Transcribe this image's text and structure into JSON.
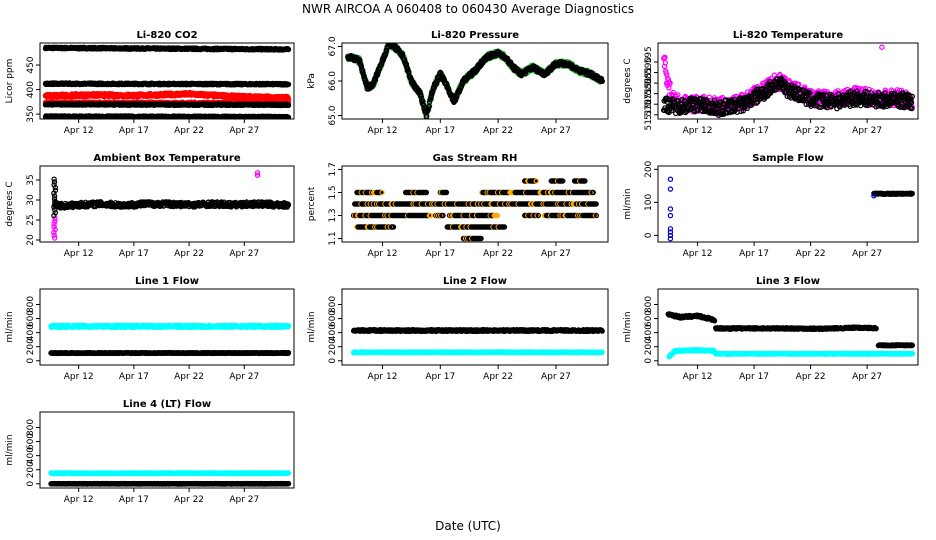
{
  "figure": {
    "title": "NWR   AIRCOA A   060408 to 060430   Average Diagnostics",
    "xlabel": "Date (UTC)"
  },
  "chart_data": [
    {
      "type": "scatter",
      "title": "Li-820 CO2",
      "ylabel": "Licor ppm",
      "ylim": [
        340,
        495
      ],
      "yticks": [
        {
          "v": 350,
          "label": "350"
        },
        {
          "v": 400,
          "label": "400"
        },
        {
          "v": 450,
          "label": "450"
        }
      ],
      "xlim": [
        8.5,
        31.5
      ],
      "xticks": [
        {
          "v": 12,
          "label": "Apr 12"
        },
        {
          "v": 17,
          "label": "Apr 17"
        },
        {
          "v": 22,
          "label": "Apr 22"
        },
        {
          "v": 27,
          "label": "Apr 27"
        }
      ],
      "series": [
        {
          "name": "ref_high",
          "color": "#000000",
          "x": [
            9,
            31
          ],
          "y": [
            485,
            482
          ],
          "noise": 1.5
        },
        {
          "name": "ref_mid",
          "color": "#000000",
          "x": [
            9,
            31
          ],
          "y": [
            412,
            411
          ],
          "noise": 1.5
        },
        {
          "name": "sample",
          "color": "#ff0000",
          "x": [
            9,
            13,
            17,
            22,
            26,
            31
          ],
          "y": [
            387,
            389,
            388,
            391,
            386,
            383
          ],
          "noise": 3
        },
        {
          "name": "sample_low",
          "color": "#ff0000",
          "x": [
            9,
            31
          ],
          "y": [
            373,
            372
          ],
          "noise": 2
        },
        {
          "name": "ref_low",
          "color": "#000000",
          "x": [
            9,
            31
          ],
          "y": [
            370,
            369
          ],
          "noise": 1.5
        },
        {
          "name": "ref_base",
          "color": "#000000",
          "x": [
            9,
            31
          ],
          "y": [
            345,
            344
          ],
          "noise": 1.5
        }
      ]
    },
    {
      "type": "line",
      "title": "Li-820 Pressure",
      "ylabel": "kPa",
      "ylim": [
        64.9,
        67.1
      ],
      "yticks": [
        {
          "v": 65.0,
          "label": "65.0"
        },
        {
          "v": 66.0,
          "label": "66.0"
        },
        {
          "v": 67.0,
          "label": "67.0"
        }
      ],
      "xlim": [
        8.5,
        31.5
      ],
      "xticks": [
        {
          "v": 12,
          "label": "Apr 12"
        },
        {
          "v": 17,
          "label": "Apr 17"
        },
        {
          "v": 22,
          "label": "Apr 22"
        },
        {
          "v": 27,
          "label": "Apr 27"
        }
      ],
      "series": [
        {
          "name": "pressure_green",
          "color": "#22bb22",
          "x": [
            9,
            10,
            10.7,
            11.2,
            12,
            12.6,
            13.3,
            13.8,
            14.5,
            15.3,
            15.8,
            16.4,
            17,
            17.5,
            18.2,
            19,
            20,
            21,
            22,
            22.6,
            23.3,
            24,
            25,
            26,
            27,
            28,
            29,
            30,
            31
          ],
          "y": [
            66.7,
            66.6,
            65.8,
            65.9,
            66.6,
            67.1,
            66.9,
            66.7,
            66.0,
            65.6,
            65.0,
            65.8,
            66.2,
            65.9,
            65.4,
            66.0,
            66.3,
            66.7,
            66.8,
            66.7,
            66.4,
            66.2,
            66.4,
            66.2,
            66.5,
            66.5,
            66.3,
            66.2,
            66.0
          ],
          "noise": 0.08
        },
        {
          "name": "pressure",
          "color": "#000000",
          "x": [
            9,
            10,
            10.7,
            11.2,
            12,
            12.6,
            13.3,
            13.8,
            14.5,
            15.3,
            15.8,
            16.4,
            17,
            17.5,
            18.2,
            19,
            20,
            21,
            22,
            22.6,
            23.3,
            24,
            25,
            26,
            27,
            28,
            29,
            30,
            31
          ],
          "y": [
            66.7,
            66.6,
            65.8,
            65.9,
            66.6,
            67.1,
            66.9,
            66.7,
            66.0,
            65.6,
            65.0,
            65.8,
            66.2,
            65.9,
            65.4,
            66.0,
            66.3,
            66.7,
            66.8,
            66.7,
            66.4,
            66.2,
            66.4,
            66.2,
            66.5,
            66.5,
            66.3,
            66.2,
            66.0
          ],
          "noise": 0.06
        }
      ]
    },
    {
      "type": "scatter",
      "title": "Li-820 Temperature",
      "ylabel": "degrees C",
      "ylim": [
        51.568,
        51.604
      ],
      "yticks": [
        {
          "v": 51.57,
          "label": "51.570"
        },
        {
          "v": 51.575,
          "label": "51.575"
        },
        {
          "v": 51.58,
          "label": "51.580"
        },
        {
          "v": 51.585,
          "label": "51.585"
        },
        {
          "v": 51.59,
          "label": "51.590"
        },
        {
          "v": 51.595,
          "label": "51.595"
        }
      ],
      "xlim": [
        8.5,
        31.5
      ],
      "xticks": [
        {
          "v": 12,
          "label": "Apr 12"
        },
        {
          "v": 17,
          "label": "Apr 17"
        },
        {
          "v": 22,
          "label": "Apr 22"
        },
        {
          "v": 27,
          "label": "Apr 27"
        }
      ],
      "series": [
        {
          "name": "temp_magenta",
          "color": "#ff00ff",
          "x": [
            9,
            9.3,
            10,
            12,
            14,
            16,
            18,
            19,
            20,
            22,
            24,
            26,
            28,
            30,
            31
          ],
          "y": [
            51.598,
            51.585,
            51.576,
            51.575,
            51.574,
            51.576,
            51.582,
            51.586,
            51.583,
            51.578,
            51.577,
            51.579,
            51.578,
            51.578,
            51.577
          ],
          "noise": 0.004
        },
        {
          "name": "temp",
          "color": "#000000",
          "x": [
            9,
            10,
            12,
            14,
            16,
            18,
            19,
            20,
            22,
            24,
            26,
            28,
            30,
            31
          ],
          "y": [
            51.575,
            51.574,
            51.575,
            51.573,
            51.575,
            51.581,
            51.585,
            51.582,
            51.577,
            51.576,
            51.578,
            51.577,
            51.577,
            51.576
          ],
          "noise": 0.0035
        }
      ]
    },
    {
      "type": "scatter",
      "title": "Ambient Box Temperature",
      "ylabel": "degrees C",
      "ylim": [
        19.5,
        38.5
      ],
      "yticks": [
        {
          "v": 20,
          "label": "20"
        },
        {
          "v": 25,
          "label": "25"
        },
        {
          "v": 30,
          "label": "30"
        },
        {
          "v": 35,
          "label": "35"
        }
      ],
      "xlim": [
        8.5,
        31.5
      ],
      "xticks": [
        {
          "v": 12,
          "label": "Apr 12"
        },
        {
          "v": 17,
          "label": "Apr 17"
        },
        {
          "v": 22,
          "label": "Apr 22"
        },
        {
          "v": 27,
          "label": "Apr 27"
        }
      ],
      "series": [
        {
          "name": "box_temp",
          "color": "#000000",
          "x": [
            9.8,
            10.5,
            12,
            14,
            16,
            18,
            20,
            22,
            24,
            26,
            28,
            30,
            31
          ],
          "y": [
            29,
            28.5,
            28.8,
            29,
            28.7,
            29,
            29,
            28.8,
            29,
            28.8,
            29,
            28.8,
            28.7
          ],
          "noise": 0.6
        }
      ]
    },
    {
      "type": "scatter",
      "title": "Gas Stream RH",
      "ylabel": "percent",
      "ylim": [
        1.07,
        1.73
      ],
      "yticks": [
        {
          "v": 1.1,
          "label": "1.1"
        },
        {
          "v": 1.3,
          "label": "1.3"
        },
        {
          "v": 1.5,
          "label": "1.5"
        },
        {
          "v": 1.7,
          "label": "1.7"
        }
      ],
      "xlim": [
        8.5,
        31.5
      ],
      "xticks": [
        {
          "v": 12,
          "label": "Apr 12"
        },
        {
          "v": 17,
          "label": "Apr 17"
        },
        {
          "v": 22,
          "label": "Apr 22"
        },
        {
          "v": 27,
          "label": "Apr 27"
        }
      ],
      "series": []
    },
    {
      "type": "scatter",
      "title": "Sample Flow",
      "ylabel": "ml/min",
      "ylim": [
        -20,
        210
      ],
      "yticks": [
        {
          "v": 0,
          "label": "0"
        },
        {
          "v": 100,
          "label": "100"
        },
        {
          "v": 200,
          "label": "200"
        }
      ],
      "xlim": [
        8.5,
        31.5
      ],
      "xticks": [
        {
          "v": 12,
          "label": "Apr 12"
        },
        {
          "v": 17,
          "label": "Apr 17"
        },
        {
          "v": 22,
          "label": "Apr 22"
        },
        {
          "v": 27,
          "label": "Apr 27"
        }
      ],
      "series": [
        {
          "name": "sample_flow",
          "color": "#000000",
          "x": [
            27.6,
            31
          ],
          "y": [
            126,
            126
          ],
          "noise": 1.5
        }
      ]
    },
    {
      "type": "scatter",
      "title": "Line 1 Flow",
      "ylabel": "ml/min",
      "ylim": [
        -60,
        1020
      ],
      "yticks": [
        {
          "v": 0,
          "label": "0"
        },
        {
          "v": 200,
          "label": "200"
        },
        {
          "v": 400,
          "label": "400"
        },
        {
          "v": 600,
          "label": "600"
        },
        {
          "v": 800,
          "label": "800"
        }
      ],
      "xlim": [
        8.5,
        31.5
      ],
      "xticks": [
        {
          "v": 12,
          "label": "Apr 12"
        },
        {
          "v": 17,
          "label": "Apr 17"
        },
        {
          "v": 22,
          "label": "Apr 22"
        },
        {
          "v": 27,
          "label": "Apr 27"
        }
      ],
      "series": [
        {
          "name": "line1_cyan",
          "color": "#00ffff",
          "x": [
            9.5,
            31
          ],
          "y": [
            490,
            490
          ],
          "noise": 15
        },
        {
          "name": "line1_black",
          "color": "#000000",
          "x": [
            9.5,
            31
          ],
          "y": [
            110,
            110
          ],
          "noise": 5
        }
      ]
    },
    {
      "type": "scatter",
      "title": "Line 2 Flow",
      "ylabel": "ml/min",
      "ylim": [
        -60,
        1020
      ],
      "yticks": [
        {
          "v": 0,
          "label": "0"
        },
        {
          "v": 200,
          "label": "200"
        },
        {
          "v": 400,
          "label": "400"
        },
        {
          "v": 600,
          "label": "600"
        },
        {
          "v": 800,
          "label": "800"
        }
      ],
      "xlim": [
        8.5,
        31.5
      ],
      "xticks": [
        {
          "v": 12,
          "label": "Apr 12"
        },
        {
          "v": 17,
          "label": "Apr 17"
        },
        {
          "v": 22,
          "label": "Apr 22"
        },
        {
          "v": 27,
          "label": "Apr 27"
        }
      ],
      "series": [
        {
          "name": "line2_black",
          "color": "#000000",
          "x": [
            9.5,
            31
          ],
          "y": [
            430,
            430
          ],
          "noise": 12
        },
        {
          "name": "line2_cyan",
          "color": "#00ffff",
          "x": [
            9.5,
            31
          ],
          "y": [
            120,
            120
          ],
          "noise": 5
        }
      ]
    },
    {
      "type": "scatter",
      "title": "Line 3 Flow",
      "ylabel": "ml/min",
      "ylim": [
        -60,
        1020
      ],
      "yticks": [
        {
          "v": 0,
          "label": "0"
        },
        {
          "v": 200,
          "label": "200"
        },
        {
          "v": 400,
          "label": "400"
        },
        {
          "v": 600,
          "label": "600"
        },
        {
          "v": 800,
          "label": "800"
        }
      ],
      "xlim": [
        8.5,
        31.5
      ],
      "xticks": [
        {
          "v": 12,
          "label": "Apr 12"
        },
        {
          "v": 17,
          "label": "Apr 17"
        },
        {
          "v": 22,
          "label": "Apr 22"
        },
        {
          "v": 27,
          "label": "Apr 27"
        }
      ],
      "series": [
        {
          "name": "line3_black_a",
          "color": "#000000",
          "x": [
            9.4,
            10.5,
            12,
            13,
            13.5
          ],
          "y": [
            660,
            620,
            640,
            600,
            580
          ],
          "noise": 14
        },
        {
          "name": "line3_black_b",
          "color": "#000000",
          "x": [
            13.6,
            17,
            20,
            23,
            26,
            27.8
          ],
          "y": [
            460,
            460,
            460,
            455,
            470,
            465
          ],
          "noise": 10
        },
        {
          "name": "line3_black_c",
          "color": "#000000",
          "x": [
            28,
            31
          ],
          "y": [
            220,
            220
          ],
          "noise": 6
        },
        {
          "name": "line3_cyan_a",
          "color": "#00ffff",
          "x": [
            9.5,
            10,
            12,
            13.5
          ],
          "y": [
            60,
            140,
            150,
            140
          ],
          "noise": 8
        },
        {
          "name": "line3_cyan_b",
          "color": "#00ffff",
          "x": [
            13.6,
            31
          ],
          "y": [
            100,
            100
          ],
          "noise": 5
        }
      ]
    },
    {
      "type": "scatter",
      "title": "Line 4 (LT) Flow",
      "ylabel": "ml/min",
      "ylim": [
        -60,
        1020
      ],
      "yticks": [
        {
          "v": 0,
          "label": "0"
        },
        {
          "v": 200,
          "label": "200"
        },
        {
          "v": 400,
          "label": "400"
        },
        {
          "v": 600,
          "label": "600"
        },
        {
          "v": 800,
          "label": "800"
        }
      ],
      "xlim": [
        8.5,
        31.5
      ],
      "xticks": [
        {
          "v": 12,
          "label": "Apr 12"
        },
        {
          "v": 17,
          "label": "Apr 17"
        },
        {
          "v": 22,
          "label": "Apr 22"
        },
        {
          "v": 27,
          "label": "Apr 27"
        }
      ],
      "series": [
        {
          "name": "line4_cyan",
          "color": "#00ffff",
          "x": [
            9.5,
            31
          ],
          "y": [
            150,
            150
          ],
          "noise": 5
        },
        {
          "name": "line4_black",
          "color": "#000000",
          "x": [
            9.5,
            31
          ],
          "y": [
            0,
            0
          ],
          "noise": 3
        }
      ]
    }
  ]
}
